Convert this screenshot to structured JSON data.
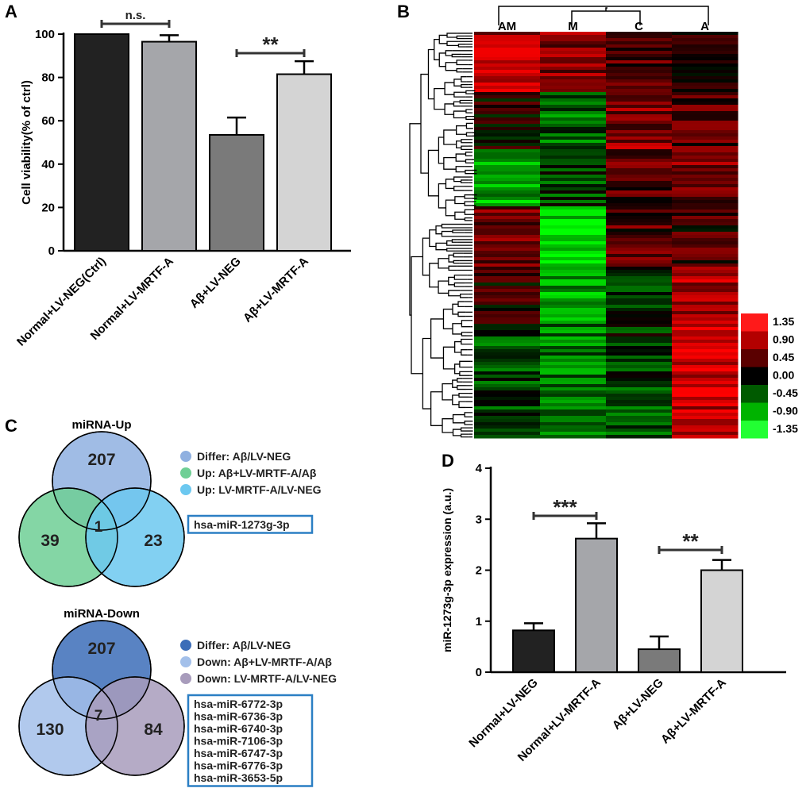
{
  "panels": {
    "a": "A",
    "b": "B",
    "c": "C",
    "d": "D"
  },
  "chart_data": [
    {
      "panel": "A",
      "type": "bar",
      "categories": [
        "Normal+LV-NEG(Ctrl)",
        "Normal+LV-MRTF-A",
        "Aβ+LV-NEG",
        "Aβ+LV-MRTF-A"
      ],
      "values": [
        100,
        96.5,
        53.5,
        81.5
      ],
      "errors": [
        0,
        3,
        8,
        6
      ],
      "colors": [
        "#222222",
        "#a5a6aa",
        "#7a7a7a",
        "#d4d4d4"
      ],
      "ylabel": "Cell viability(% of ctrl)",
      "ylim": [
        0,
        100
      ],
      "yticks": [
        0,
        20,
        40,
        60,
        80,
        100
      ],
      "annotations": [
        {
          "from": 0,
          "to": 1,
          "text": "n.s."
        },
        {
          "from": 2,
          "to": 3,
          "text": "**"
        }
      ]
    },
    {
      "panel": "B",
      "type": "heatmap",
      "columns": [
        "AM",
        "M",
        "C",
        "A"
      ],
      "scale_labels": [
        "1.35",
        "0.90",
        "0.45",
        "0.00",
        "-0.45",
        "-0.90",
        "-1.35"
      ],
      "scale_colors": [
        "#ff1a1a",
        "#b30000",
        "#5a0000",
        "#000000",
        "#005a00",
        "#00b300",
        "#22ff33"
      ]
    },
    {
      "panel": "C",
      "type": "venn",
      "sets": [
        {
          "title": "miRNA-Up",
          "counts": {
            "top": "207",
            "left": "39",
            "right": "23",
            "center": "1"
          },
          "legend": [
            {
              "label": "Differ: Aβ/LV-NEG",
              "color": "#8fb0e0"
            },
            {
              "label": "Up: Aβ+LV-MRTF-A/Aβ",
              "color": "#6fcf95"
            },
            {
              "label": "Up: LV-MRTF-A/LV-NEG",
              "color": "#6cc8f0"
            }
          ],
          "genes": [
            "hsa-miR-1273g-3p"
          ]
        },
        {
          "title": "miRNA-Down",
          "counts": {
            "top": "207",
            "left": "130",
            "right": "84",
            "center": "7"
          },
          "legend": [
            {
              "label": "Differ: Aβ/LV-NEG",
              "color": "#3c6db8"
            },
            {
              "label": "Down: Aβ+LV-MRTF-A/Aβ",
              "color": "#a3c0ea"
            },
            {
              "label": "Down: LV-MRTF-A/LV-NEG",
              "color": "#a89cbc"
            }
          ],
          "genes": [
            "hsa-miR-6772-3p",
            "hsa-miR-6736-3p",
            "hsa-miR-6740-3p",
            "hsa-miR-7106-3p",
            "hsa-miR-6747-3p",
            "hsa-miR-6776-3p",
            "hsa-miR-3653-5p"
          ]
        }
      ]
    },
    {
      "panel": "D",
      "type": "bar",
      "categories": [
        "Normal+LV-NEG",
        "Normal+LV-MRTF-A",
        "Aβ+LV-NEG",
        "Aβ+LV-MRTF-A"
      ],
      "values": [
        0.82,
        2.62,
        0.45,
        2.0
      ],
      "errors": [
        0.14,
        0.3,
        0.25,
        0.2
      ],
      "colors": [
        "#222222",
        "#a5a6aa",
        "#7a7a7a",
        "#d4d4d4"
      ],
      "ylabel": "miR-1273g-3p expression (a.u.)",
      "ylim": [
        0,
        4
      ],
      "yticks": [
        0,
        1,
        2,
        3,
        4
      ],
      "annotations": [
        {
          "from": 0,
          "to": 1,
          "text": "***"
        },
        {
          "from": 2,
          "to": 3,
          "text": "**"
        }
      ]
    }
  ]
}
